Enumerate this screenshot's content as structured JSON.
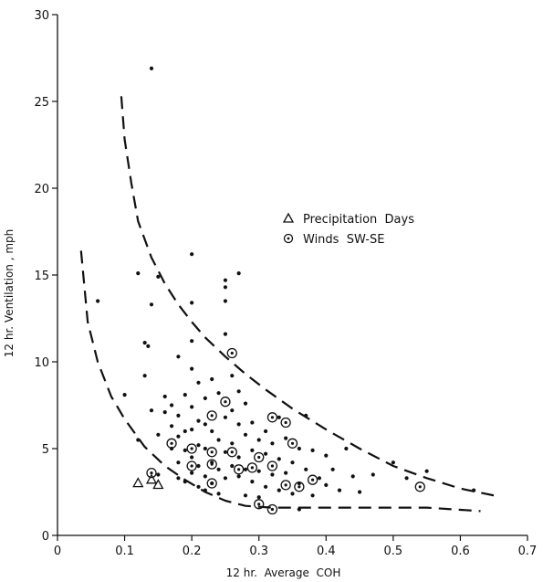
{
  "chart_data": {
    "type": "scatter",
    "xlabel": "12 hr.  Average  COH",
    "ylabel": "12 hr. Ventilation , mph",
    "xlim": [
      0,
      0.7
    ],
    "ylim": [
      0,
      30
    ],
    "x_ticks": [
      "0",
      "0.1",
      "0.2",
      "0.3",
      "0.4",
      "0.5",
      "0.6",
      "0.7"
    ],
    "y_ticks": [
      "0",
      "5",
      "10",
      "15",
      "20",
      "25",
      "30"
    ],
    "grid": false,
    "legend_position": "upper-right-inside",
    "legend": [
      {
        "symbol": "triangle",
        "label": "Precipitation  Days"
      },
      {
        "symbol": "circle",
        "label": "Winds  SW-SE"
      }
    ],
    "series": [
      {
        "marker": "dot",
        "points": [
          [
            0.14,
            26.9
          ],
          [
            0.06,
            13.5
          ],
          [
            0.1,
            8.1
          ],
          [
            0.12,
            15.1
          ],
          [
            0.13,
            11.1
          ],
          [
            0.135,
            10.9
          ],
          [
            0.14,
            13.3
          ],
          [
            0.15,
            14.9
          ],
          [
            0.12,
            5.5
          ],
          [
            0.13,
            9.2
          ],
          [
            0.14,
            7.2
          ],
          [
            0.15,
            5.8
          ],
          [
            0.15,
            3.5
          ],
          [
            0.16,
            7.1
          ],
          [
            0.16,
            8.0
          ],
          [
            0.17,
            7.5
          ],
          [
            0.17,
            6.3
          ],
          [
            0.17,
            5.0
          ],
          [
            0.18,
            10.3
          ],
          [
            0.18,
            6.9
          ],
          [
            0.18,
            5.7
          ],
          [
            0.18,
            4.2
          ],
          [
            0.18,
            3.3
          ],
          [
            0.19,
            8.1
          ],
          [
            0.19,
            6.0
          ],
          [
            0.19,
            4.9
          ],
          [
            0.19,
            3.1
          ],
          [
            0.2,
            16.2
          ],
          [
            0.2,
            13.4
          ],
          [
            0.2,
            11.2
          ],
          [
            0.2,
            9.6
          ],
          [
            0.2,
            7.4
          ],
          [
            0.2,
            6.1
          ],
          [
            0.2,
            4.5
          ],
          [
            0.2,
            3.6
          ],
          [
            0.21,
            8.8
          ],
          [
            0.21,
            6.6
          ],
          [
            0.21,
            5.2
          ],
          [
            0.21,
            4.0
          ],
          [
            0.21,
            2.8
          ],
          [
            0.22,
            7.9
          ],
          [
            0.22,
            6.4
          ],
          [
            0.22,
            5.0
          ],
          [
            0.22,
            3.4
          ],
          [
            0.22,
            2.6
          ],
          [
            0.23,
            9.0
          ],
          [
            0.23,
            6.0
          ],
          [
            0.23,
            4.2
          ],
          [
            0.23,
            3.0
          ],
          [
            0.24,
            8.2
          ],
          [
            0.24,
            5.5
          ],
          [
            0.24,
            3.8
          ],
          [
            0.24,
            2.4
          ],
          [
            0.25,
            14.7
          ],
          [
            0.25,
            14.3
          ],
          [
            0.25,
            13.5
          ],
          [
            0.25,
            11.6
          ],
          [
            0.25,
            6.8
          ],
          [
            0.25,
            4.8
          ],
          [
            0.25,
            3.3
          ],
          [
            0.26,
            9.2
          ],
          [
            0.26,
            7.2
          ],
          [
            0.26,
            5.3
          ],
          [
            0.26,
            4.0
          ],
          [
            0.27,
            15.1
          ],
          [
            0.27,
            8.3
          ],
          [
            0.27,
            6.4
          ],
          [
            0.27,
            4.5
          ],
          [
            0.27,
            3.4
          ],
          [
            0.28,
            7.6
          ],
          [
            0.28,
            5.8
          ],
          [
            0.28,
            3.8
          ],
          [
            0.28,
            2.3
          ],
          [
            0.29,
            6.5
          ],
          [
            0.29,
            4.9
          ],
          [
            0.29,
            3.1
          ],
          [
            0.3,
            5.5
          ],
          [
            0.3,
            3.7
          ],
          [
            0.3,
            2.2
          ],
          [
            0.31,
            6.0
          ],
          [
            0.31,
            4.7
          ],
          [
            0.31,
            2.8
          ],
          [
            0.32,
            5.3
          ],
          [
            0.32,
            3.5
          ],
          [
            0.33,
            6.8
          ],
          [
            0.33,
            4.4
          ],
          [
            0.33,
            2.6
          ],
          [
            0.34,
            5.6
          ],
          [
            0.34,
            3.6
          ],
          [
            0.35,
            4.2
          ],
          [
            0.35,
            2.4
          ],
          [
            0.36,
            5.0
          ],
          [
            0.36,
            3.0
          ],
          [
            0.36,
            1.5
          ],
          [
            0.37,
            6.9
          ],
          [
            0.37,
            3.8
          ],
          [
            0.38,
            4.9
          ],
          [
            0.38,
            2.3
          ],
          [
            0.39,
            3.3
          ],
          [
            0.4,
            4.6
          ],
          [
            0.4,
            2.9
          ],
          [
            0.41,
            3.8
          ],
          [
            0.42,
            2.6
          ],
          [
            0.43,
            5.0
          ],
          [
            0.44,
            3.4
          ],
          [
            0.45,
            2.5
          ],
          [
            0.47,
            3.5
          ],
          [
            0.5,
            4.2
          ],
          [
            0.52,
            3.3
          ],
          [
            0.55,
            3.7
          ],
          [
            0.62,
            2.6
          ]
        ]
      },
      {
        "marker": "triangle",
        "points": [
          [
            0.12,
            3.0
          ],
          [
            0.14,
            3.2
          ],
          [
            0.15,
            2.9
          ]
        ]
      },
      {
        "marker": "circle",
        "points": [
          [
            0.14,
            3.6
          ],
          [
            0.17,
            5.3
          ],
          [
            0.2,
            5.0
          ],
          [
            0.2,
            4.0
          ],
          [
            0.23,
            6.9
          ],
          [
            0.23,
            4.8
          ],
          [
            0.23,
            4.1
          ],
          [
            0.23,
            3.0
          ],
          [
            0.25,
            7.7
          ],
          [
            0.26,
            10.5
          ],
          [
            0.26,
            4.8
          ],
          [
            0.27,
            3.8
          ],
          [
            0.29,
            3.9
          ],
          [
            0.3,
            4.5
          ],
          [
            0.3,
            1.8
          ],
          [
            0.32,
            6.8
          ],
          [
            0.32,
            4.0
          ],
          [
            0.32,
            1.5
          ],
          [
            0.34,
            6.5
          ],
          [
            0.34,
            2.9
          ],
          [
            0.35,
            5.3
          ],
          [
            0.36,
            2.8
          ],
          [
            0.38,
            3.2
          ],
          [
            0.54,
            2.8
          ]
        ]
      }
    ],
    "envelope_curves": [
      {
        "name": "upper",
        "x": [
          0.095,
          0.1,
          0.11,
          0.12,
          0.14,
          0.16,
          0.18,
          0.2,
          0.22,
          0.25,
          0.28,
          0.31,
          0.35,
          0.4,
          0.45,
          0.5,
          0.55,
          0.6,
          0.65
        ],
        "y": [
          25.3,
          22.8,
          20.3,
          18.1,
          16.0,
          14.5,
          13.3,
          12.3,
          11.4,
          10.3,
          9.3,
          8.4,
          7.3,
          6.1,
          5.0,
          4.0,
          3.3,
          2.7,
          2.3
        ]
      },
      {
        "name": "lower",
        "x": [
          0.035,
          0.045,
          0.06,
          0.08,
          0.1,
          0.13,
          0.16,
          0.19,
          0.22,
          0.25,
          0.28,
          0.32,
          0.38,
          0.45,
          0.55,
          0.63
        ],
        "y": [
          16.4,
          12.3,
          10.0,
          8.0,
          6.7,
          5.1,
          4.0,
          3.2,
          2.5,
          2.0,
          1.7,
          1.6,
          1.6,
          1.6,
          1.6,
          1.4
        ]
      }
    ]
  }
}
